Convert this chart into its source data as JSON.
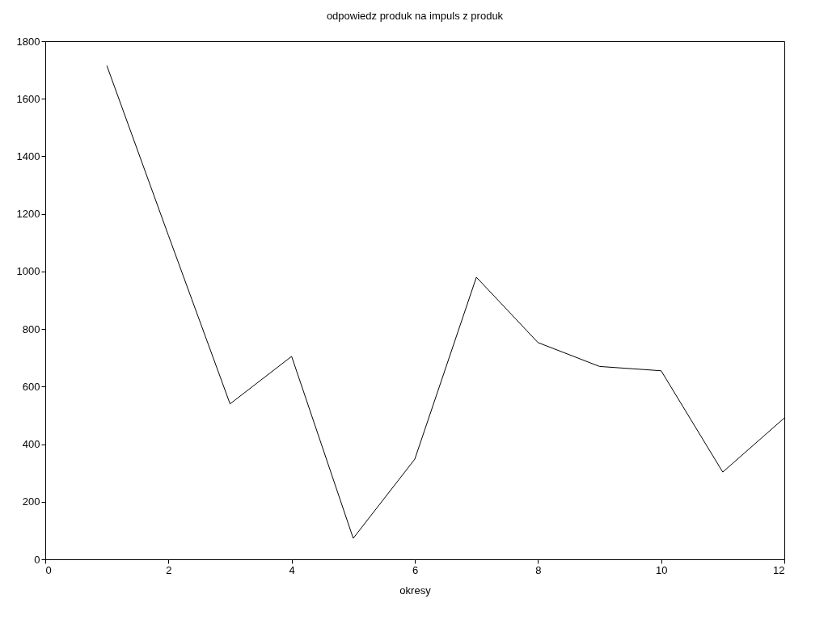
{
  "chart_data": {
    "type": "line",
    "title": "odpowiedz produk na impuls z produk",
    "xlabel": "okresy",
    "x": [
      1,
      2,
      3,
      4,
      5,
      6,
      7,
      8,
      9,
      10,
      11,
      12
    ],
    "series": [
      {
        "color": "#000000",
        "values": [
          1715,
          1125,
          540,
          705,
          73,
          348,
          980,
          753,
          670,
          655,
          303,
          491
        ]
      }
    ],
    "xlim": [
      0,
      12
    ],
    "xticks": [
      0,
      2,
      4,
      6,
      8,
      10,
      12
    ],
    "ylim": [
      0,
      1800
    ],
    "yticks": [
      0,
      200,
      400,
      600,
      800,
      1000,
      1200,
      1400,
      1600,
      1800
    ],
    "grid": false,
    "marker": "none",
    "line_style": "solid"
  }
}
